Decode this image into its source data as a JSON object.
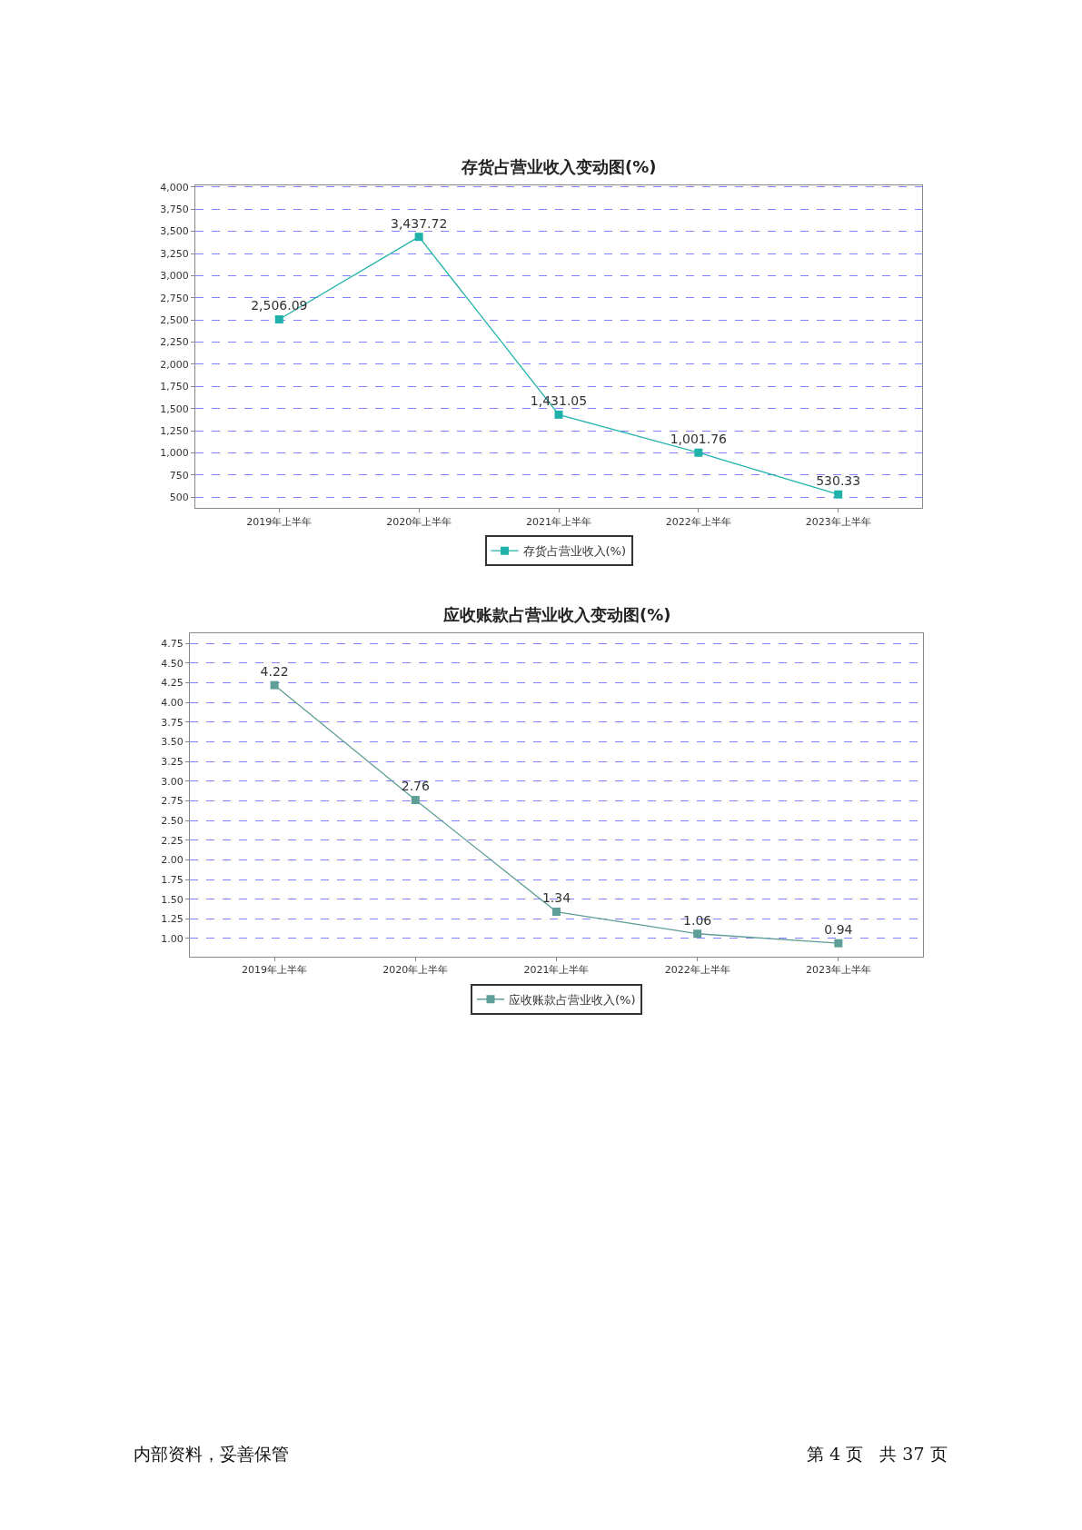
{
  "chart_data": [
    {
      "type": "line",
      "title": "存货占营业收入变动图(%)",
      "categories": [
        "2019年上半年",
        "2020年上半年",
        "2021年上半年",
        "2022年上半年",
        "2023年上半年"
      ],
      "series": [
        {
          "name": "存货占营业收入(%)",
          "color": "#20b2aa",
          "values": [
            2506.09,
            3437.72,
            1431.05,
            1001.76,
            530.33
          ],
          "value_labels": [
            "2,506.09",
            "3,437.72",
            "1,431.05",
            "1,001.76",
            "530.33"
          ]
        }
      ],
      "ylim": [
        375,
        4015
      ],
      "yticks": [
        {
          "value": 500,
          "label": "500"
        },
        {
          "value": 750,
          "label": "750"
        },
        {
          "value": 1000,
          "label": "1,000"
        },
        {
          "value": 1250,
          "label": "1,250"
        },
        {
          "value": 1500,
          "label": "1,500"
        },
        {
          "value": 1750,
          "label": "1,750"
        },
        {
          "value": 2000,
          "label": "2,000"
        },
        {
          "value": 2250,
          "label": "2,250"
        },
        {
          "value": 2500,
          "label": "2,500"
        },
        {
          "value": 2750,
          "label": "2,750"
        },
        {
          "value": 3000,
          "label": "3,000"
        },
        {
          "value": 3250,
          "label": "3,250"
        },
        {
          "value": 3500,
          "label": "3,500"
        },
        {
          "value": 3750,
          "label": "3,750"
        },
        {
          "value": 4000,
          "label": "4,000"
        }
      ],
      "grid": "y",
      "legend": "bottom",
      "marker": "square",
      "line_style": "solid"
    },
    {
      "type": "line",
      "title": "应收账款占营业收入变动图(%)",
      "categories": [
        "2019年上半年",
        "2020年上半年",
        "2021年上半年",
        "2022年上半年",
        "2023年上半年"
      ],
      "series": [
        {
          "name": "应收账款占营业收入(%)",
          "color": "#5f9e98",
          "values": [
            4.22,
            2.76,
            1.34,
            1.06,
            0.94
          ]
        }
      ],
      "ylim": [
        0.77,
        4.88
      ],
      "yticks": [
        {
          "value": 1,
          "label": "1.00"
        },
        {
          "value": 1.25,
          "label": "1.25"
        },
        {
          "value": 1.5,
          "label": "1.50"
        },
        {
          "value": 1.75,
          "label": "1.75"
        },
        {
          "value": 2,
          "label": "2.00"
        },
        {
          "value": 2.25,
          "label": "2.25"
        },
        {
          "value": 2.5,
          "label": "2.50"
        },
        {
          "value": 2.75,
          "label": "2.75"
        },
        {
          "value": 3,
          "label": "3.00"
        },
        {
          "value": 3.25,
          "label": "3.25"
        },
        {
          "value": 3.5,
          "label": "3.50"
        },
        {
          "value": 3.75,
          "label": "3.75"
        },
        {
          "value": 4,
          "label": "4.00"
        },
        {
          "value": 4.25,
          "label": "4.25"
        },
        {
          "value": 4.5,
          "label": "4.50"
        },
        {
          "value": 4.75,
          "label": "4.75"
        }
      ],
      "grid": "y",
      "legend": "bottom",
      "marker": "square",
      "line_style": "solid",
      "data_labels": true,
      "annotations": [
        "内部资料，妥善保管",
        "第 4 页   共 37 页"
      ]
    }
  ]
}
